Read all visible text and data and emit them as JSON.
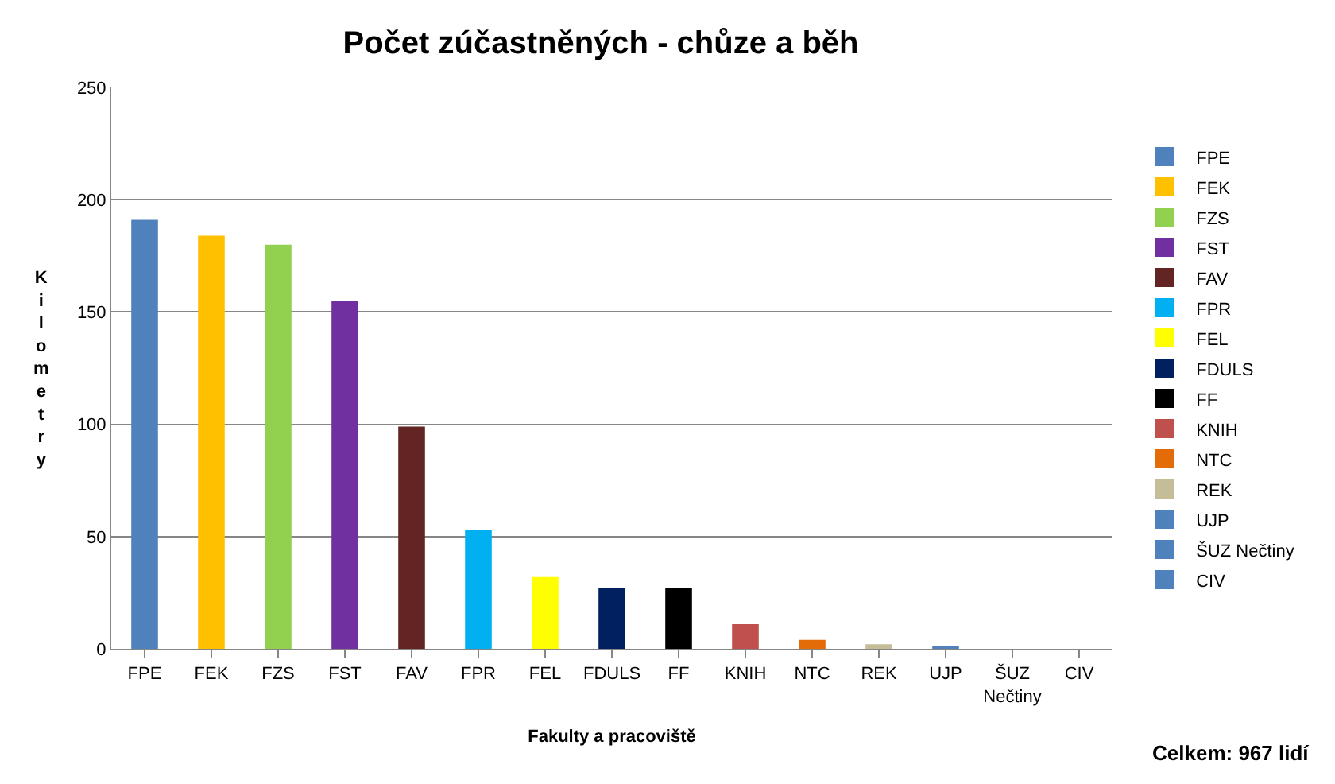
{
  "chart_data": {
    "type": "bar",
    "title": "Počet zúčastněných - chůze a běh",
    "xlabel": "Fakulty a pracoviště",
    "ylabel": "Kilometry",
    "categories": [
      "FPE",
      "FEK",
      "FZS",
      "FST",
      "FAV",
      "FPR",
      "FEL",
      "FDULS",
      "FF",
      "KNIH",
      "NTC",
      "REK",
      "UJP",
      "ŠUZ Nečtiny",
      "CIV"
    ],
    "series": [
      {
        "name": "FPE",
        "color": "#4f81bd",
        "values": [
          191,
          null,
          null,
          null,
          null,
          null,
          null,
          null,
          null,
          null,
          null,
          null,
          null,
          null,
          null
        ]
      },
      {
        "name": "FEK",
        "color": "#ffc000",
        "values": [
          null,
          184,
          null,
          null,
          null,
          null,
          null,
          null,
          null,
          null,
          null,
          null,
          null,
          null,
          null
        ]
      },
      {
        "name": "FZS",
        "color": "#92d050",
        "values": [
          null,
          null,
          180,
          null,
          null,
          null,
          null,
          null,
          null,
          null,
          null,
          null,
          null,
          null,
          null
        ]
      },
      {
        "name": "FST",
        "color": "#7030a0",
        "values": [
          null,
          null,
          null,
          155,
          null,
          null,
          null,
          null,
          null,
          null,
          null,
          null,
          null,
          null,
          null
        ]
      },
      {
        "name": "FAV",
        "color": "#632523",
        "values": [
          null,
          null,
          null,
          null,
          99,
          null,
          null,
          null,
          null,
          null,
          null,
          null,
          null,
          null,
          null
        ]
      },
      {
        "name": "FPR",
        "color": "#00b0f0",
        "values": [
          null,
          null,
          null,
          null,
          null,
          53,
          null,
          null,
          null,
          null,
          null,
          null,
          null,
          null,
          null
        ]
      },
      {
        "name": "FEL",
        "color": "#ffff00",
        "values": [
          null,
          null,
          null,
          null,
          null,
          null,
          32,
          null,
          null,
          null,
          null,
          null,
          null,
          null,
          null
        ]
      },
      {
        "name": "FDULS",
        "color": "#002060",
        "values": [
          null,
          null,
          null,
          null,
          null,
          null,
          null,
          27,
          null,
          null,
          null,
          null,
          null,
          null,
          null
        ]
      },
      {
        "name": "FF",
        "color": "#000000",
        "values": [
          null,
          null,
          null,
          null,
          null,
          null,
          null,
          null,
          27,
          null,
          null,
          null,
          null,
          null,
          null
        ]
      },
      {
        "name": "KNIH",
        "color": "#c0504d",
        "values": [
          null,
          null,
          null,
          null,
          null,
          null,
          null,
          null,
          null,
          11,
          null,
          null,
          null,
          null,
          null
        ]
      },
      {
        "name": "NTC",
        "color": "#e36c09",
        "values": [
          null,
          null,
          null,
          null,
          null,
          null,
          null,
          null,
          null,
          null,
          4,
          null,
          null,
          null,
          null
        ]
      },
      {
        "name": "REK",
        "color": "#c4bd97",
        "values": [
          null,
          null,
          null,
          null,
          null,
          null,
          null,
          null,
          null,
          null,
          null,
          2,
          null,
          null,
          null
        ]
      },
      {
        "name": "UJP",
        "color": "#4f81bd",
        "values": [
          null,
          null,
          null,
          null,
          null,
          null,
          null,
          null,
          null,
          null,
          null,
          null,
          1,
          null,
          null
        ]
      },
      {
        "name": "ŠUZ Nečtiny",
        "color": "#4f81bd",
        "values": [
          null,
          null,
          null,
          null,
          null,
          null,
          null,
          null,
          null,
          null,
          null,
          null,
          null,
          0,
          null
        ]
      },
      {
        "name": "CIV",
        "color": "#4f81bd",
        "values": [
          null,
          null,
          null,
          null,
          null,
          null,
          null,
          null,
          null,
          null,
          null,
          null,
          null,
          null,
          0
        ]
      }
    ],
    "ylim": [
      0,
      250
    ],
    "yticks": [
      0,
      50,
      100,
      150,
      200,
      250
    ],
    "grid": "y",
    "legend": "right",
    "annotations": [
      "Celkem: 967 lidí"
    ]
  }
}
